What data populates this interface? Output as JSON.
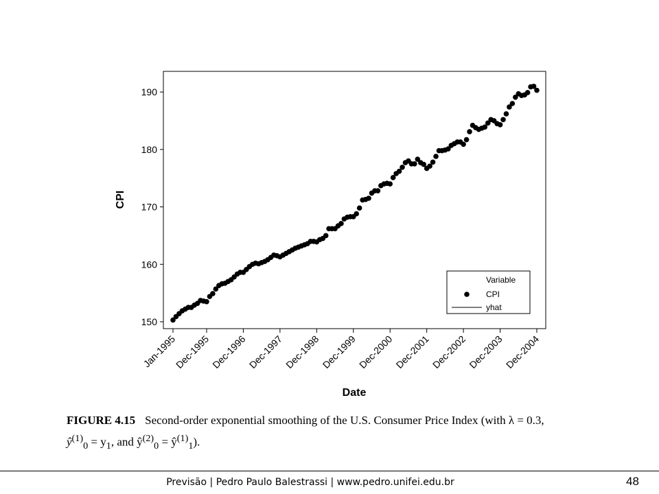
{
  "chart_data": {
    "type": "scatter",
    "title": "",
    "xlabel": "Date",
    "ylabel": "CPI",
    "ylim": [
      148.8,
      193.6
    ],
    "y_ticks": [
      150,
      160,
      170,
      180,
      190
    ],
    "x_ticks": [
      {
        "label": "Jan-1995",
        "index": 0
      },
      {
        "label": "Dec-1995",
        "index": 11
      },
      {
        "label": "Dec-1996",
        "index": 23
      },
      {
        "label": "Dec-1997",
        "index": 35
      },
      {
        "label": "Dec-1998",
        "index": 47
      },
      {
        "label": "Dec-1999",
        "index": 59
      },
      {
        "label": "Dec-2000",
        "index": 71
      },
      {
        "label": "Dec-2001",
        "index": 83
      },
      {
        "label": "Dec-2002",
        "index": 95
      },
      {
        "label": "Dec-2003",
        "index": 107
      },
      {
        "label": "Dec-2004",
        "index": 119
      }
    ],
    "legend": {
      "title": "Variable",
      "position": "bottom-right",
      "entries": [
        {
          "name": "CPI",
          "marker": "dot"
        },
        {
          "name": "yhat",
          "marker": "line"
        }
      ]
    },
    "series": [
      {
        "name": "CPI",
        "values": [
          150.3,
          150.9,
          151.4,
          151.9,
          152.2,
          152.5,
          152.5,
          152.9,
          153.2,
          153.7,
          153.6,
          153.5,
          154.4,
          154.9,
          155.7,
          156.3,
          156.6,
          156.7,
          157.0,
          157.3,
          157.8,
          158.3,
          158.6,
          158.6,
          159.1,
          159.6,
          160.0,
          160.2,
          160.1,
          160.3,
          160.5,
          160.8,
          161.2,
          161.6,
          161.5,
          161.3,
          161.6,
          161.9,
          162.2,
          162.5,
          162.8,
          163.0,
          163.2,
          163.4,
          163.6,
          164.0,
          164.0,
          163.9,
          164.3,
          164.5,
          165.0,
          166.2,
          166.2,
          166.2,
          166.7,
          167.1,
          167.9,
          168.2,
          168.3,
          168.3,
          168.8,
          169.8,
          171.2,
          171.3,
          171.5,
          172.4,
          172.8,
          172.8,
          173.7,
          174.0,
          174.1,
          174.0,
          175.1,
          175.8,
          176.2,
          176.9,
          177.7,
          178.0,
          177.5,
          177.5,
          178.3,
          177.7,
          177.4,
          176.7,
          177.1,
          177.8,
          178.8,
          179.8,
          179.8,
          179.9,
          180.1,
          180.7,
          181.0,
          181.3,
          181.3,
          180.9,
          181.7,
          183.1,
          184.2,
          183.8,
          183.5,
          183.7,
          183.9,
          184.6,
          185.2,
          185.0,
          184.5,
          184.3,
          185.2,
          186.2,
          187.4,
          188.0,
          189.1,
          189.7,
          189.4,
          189.5,
          189.9,
          190.9,
          191.0,
          190.3
        ]
      },
      {
        "name": "yhat",
        "values": []
      }
    ]
  },
  "caption": {
    "figure_label": "FIGURE 4.15",
    "text_line1": "Second-order exponential smoothing of the U.S. Consumer Price Index (with λ = 0.3,",
    "text_line2_a": "ŷ",
    "sup_1": "(1)",
    "sub_0": "0",
    "eq1": " = y",
    "sub_1": "1",
    "text_and": ", and ŷ",
    "sup_2": "(2)",
    "sub_0b": "0",
    "eq2": " = ŷ",
    "sup_1b": "(1)",
    "sub_1b": "1",
    "close": ")."
  },
  "footer": {
    "text": "Previsão | Pedro Paulo Balestrassi | www.pedro.unifei.edu.br",
    "page_number": "48"
  }
}
